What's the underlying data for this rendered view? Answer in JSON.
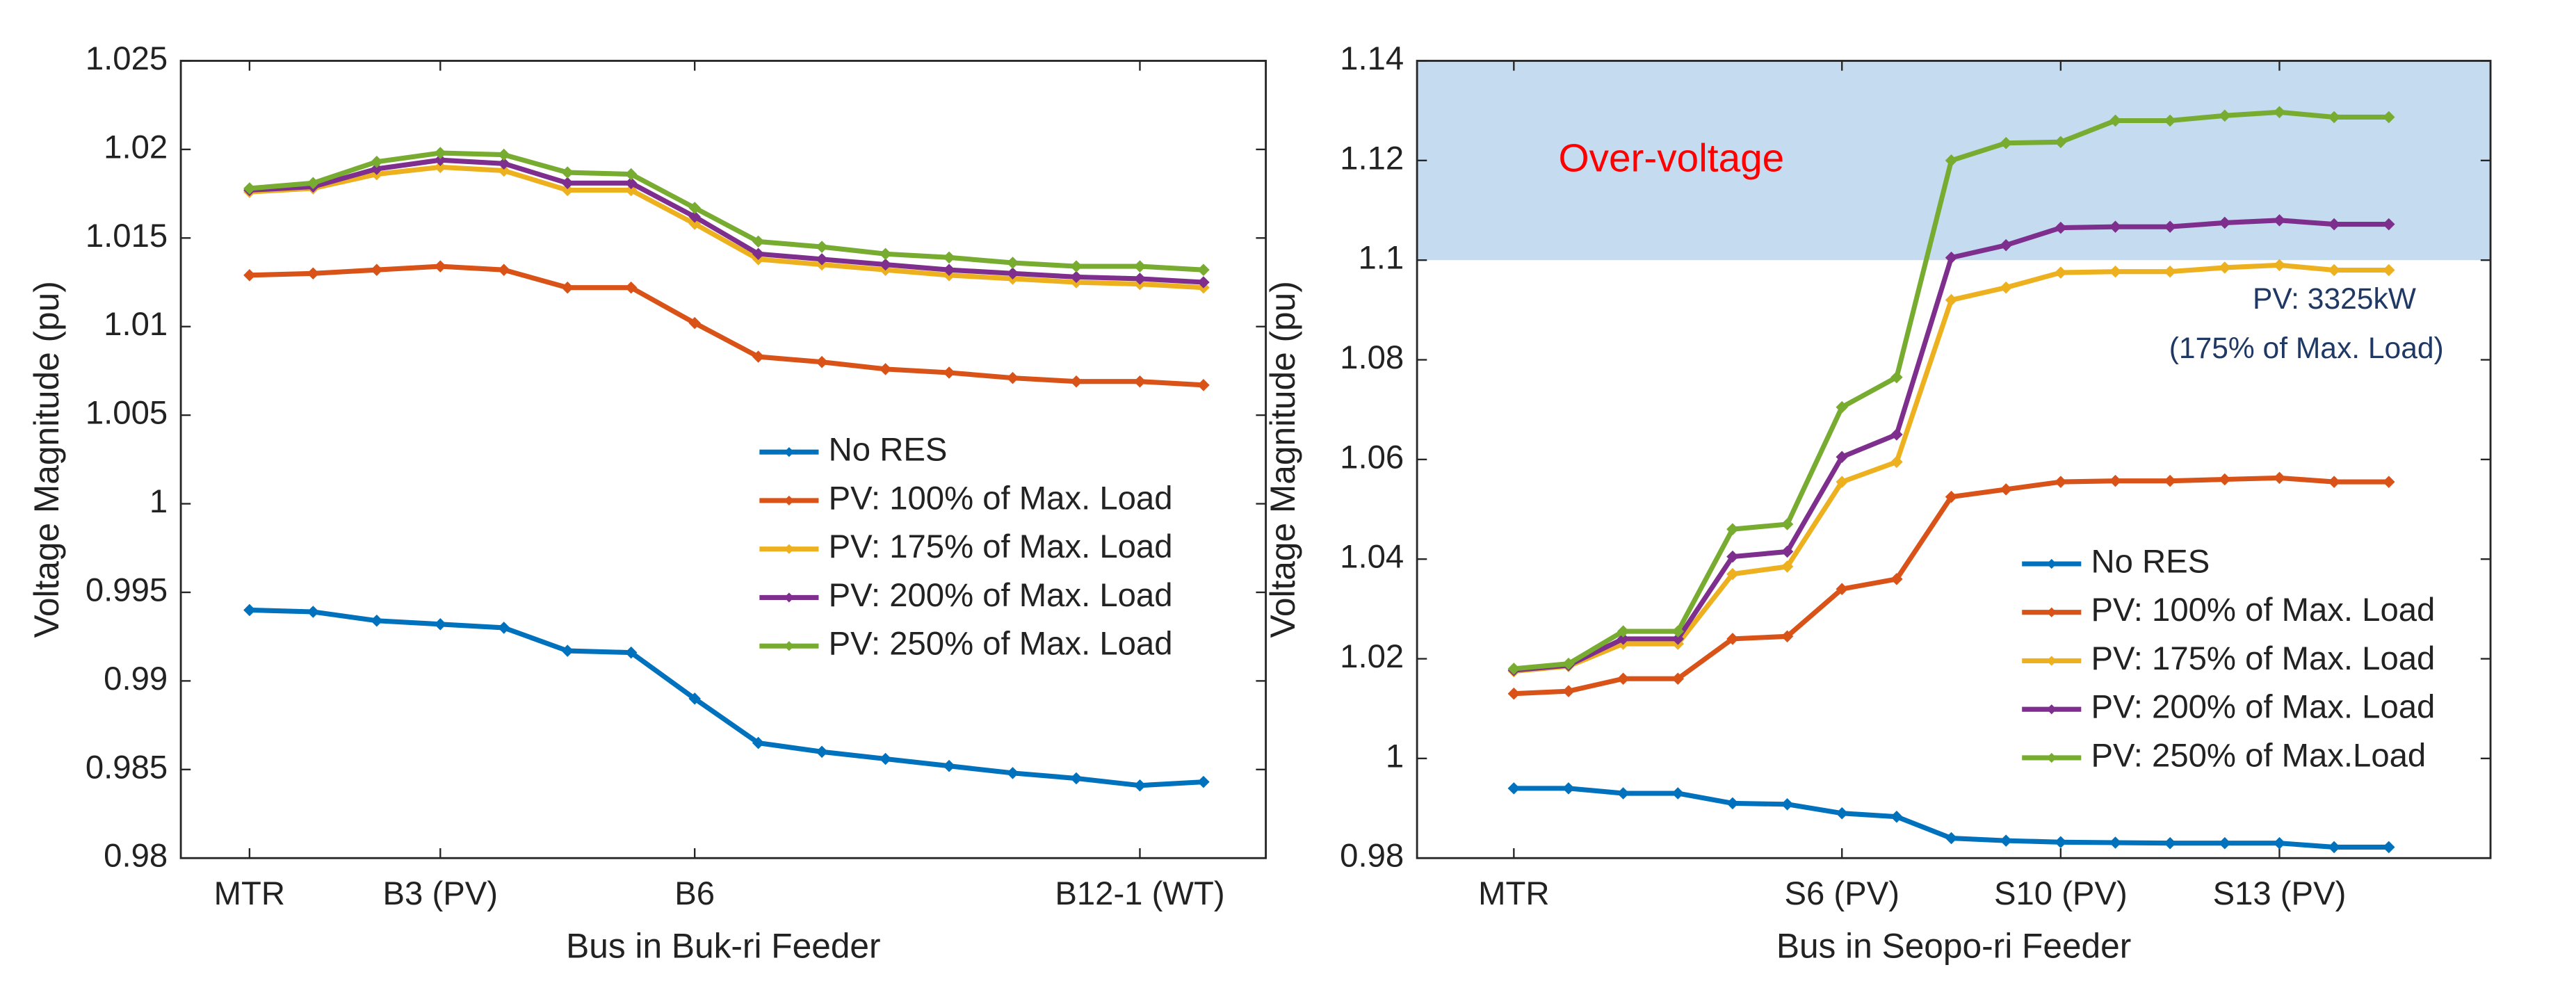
{
  "chart_data": [
    {
      "type": "line",
      "xlabel": "Bus in Buk-ri Feeder",
      "ylabel": "Voltage Magnitude (pu)",
      "categories": [
        "MTR",
        null,
        null,
        "B3 (PV)",
        null,
        null,
        null,
        "B6",
        null,
        null,
        null,
        null,
        null,
        null,
        "B12-1 (WT)",
        null
      ],
      "ylim": [
        0.98,
        1.025
      ],
      "yticks": [
        0.98,
        0.985,
        0.99,
        0.995,
        1,
        1.005,
        1.01,
        1.015,
        1.02,
        1.025
      ],
      "legend": "center right",
      "series": [
        {
          "name": "No RES",
          "color": "#0072bd",
          "values": [
            0.994,
            0.9939,
            0.9934,
            0.9932,
            0.993,
            0.9917,
            0.9916,
            0.989,
            0.9865,
            0.986,
            0.9856,
            0.9852,
            0.9848,
            0.9845,
            0.9841,
            0.9843
          ]
        },
        {
          "name": "PV: 100% of Max. Load",
          "color": "#d95319",
          "values": [
            1.0129,
            1.013,
            1.0132,
            1.0134,
            1.0132,
            1.0122,
            1.0122,
            1.0102,
            1.0083,
            1.008,
            1.0076,
            1.0074,
            1.0071,
            1.0069,
            1.0069,
            1.0067
          ]
        },
        {
          "name": "PV: 175% of Max. Load",
          "color": "#edb120",
          "values": [
            1.0176,
            1.0178,
            1.0186,
            1.019,
            1.0188,
            1.0177,
            1.0177,
            1.0158,
            1.0138,
            1.0135,
            1.0132,
            1.0129,
            1.0127,
            1.0125,
            1.0124,
            1.0122
          ]
        },
        {
          "name": "PV: 200% of Max. Load",
          "color": "#7e2f8e",
          "values": [
            1.0177,
            1.0179,
            1.0189,
            1.0194,
            1.0192,
            1.0181,
            1.0181,
            1.0162,
            1.0141,
            1.0138,
            1.0135,
            1.0132,
            1.013,
            1.0128,
            1.0127,
            1.0125
          ]
        },
        {
          "name": "PV: 250% of Max. Load",
          "color": "#77ac30",
          "values": [
            1.0178,
            1.0181,
            1.0193,
            1.0198,
            1.0197,
            1.0187,
            1.0186,
            1.0167,
            1.0148,
            1.0145,
            1.0141,
            1.0139,
            1.0136,
            1.0134,
            1.0134,
            1.0132
          ]
        }
      ]
    },
    {
      "type": "line",
      "xlabel": "Bus in Seopo-ri Feeder",
      "ylabel": "Voltage Magnitude (pu)",
      "categories": [
        "MTR",
        null,
        null,
        null,
        null,
        null,
        "S6 (PV)",
        null,
        null,
        null,
        "S10 (PV)",
        null,
        null,
        null,
        "S13 (PV)",
        null,
        null
      ],
      "ylim": [
        0.98,
        1.14
      ],
      "yticks": [
        0.98,
        1,
        1.02,
        1.04,
        1.06,
        1.08,
        1.1,
        1.12,
        1.14
      ],
      "legend": "lower right",
      "shaded_region": {
        "label": "Over-voltage",
        "range": [
          1.1,
          1.14
        ],
        "color": "#c5dbef"
      },
      "annotation": [
        "PV: 3325kW",
        "(175% of Max. Load)"
      ],
      "series": [
        {
          "name": "No RES",
          "color": "#0072bd",
          "values": [
            0.994,
            0.994,
            0.993,
            0.993,
            0.991,
            0.9908,
            0.989,
            0.9883,
            0.984,
            0.9835,
            0.9832,
            0.9831,
            0.983,
            0.983,
            0.983,
            0.9822,
            0.9822
          ]
        },
        {
          "name": "PV: 100% of Max. Load",
          "color": "#d95319",
          "values": [
            1.013,
            1.0135,
            1.016,
            1.016,
            1.024,
            1.0245,
            1.034,
            1.036,
            1.0525,
            1.054,
            1.0555,
            1.0557,
            1.0557,
            1.056,
            1.0563,
            1.0555,
            1.0555
          ]
        },
        {
          "name": "PV: 175% of Max. Load",
          "color": "#edb120",
          "values": [
            1.0175,
            1.0185,
            1.023,
            1.023,
            1.037,
            1.0385,
            1.0555,
            1.0595,
            1.092,
            1.0945,
            1.0975,
            1.0977,
            1.0977,
            1.0985,
            1.099,
            1.098,
            1.098
          ]
        },
        {
          "name": "PV: 200% of Max. Load",
          "color": "#7e2f8e",
          "values": [
            1.0177,
            1.0187,
            1.024,
            1.024,
            1.0405,
            1.0415,
            1.0605,
            1.065,
            1.1005,
            1.103,
            1.1065,
            1.1067,
            1.1067,
            1.1075,
            1.108,
            1.1072,
            1.1072
          ]
        },
        {
          "name": "PV: 250% of Max.Load",
          "color": "#77ac30",
          "values": [
            1.018,
            1.019,
            1.0255,
            1.0255,
            1.046,
            1.047,
            1.0705,
            1.0765,
            1.12,
            1.1235,
            1.1237,
            1.128,
            1.128,
            1.129,
            1.1297,
            1.1287,
            1.1287
          ]
        }
      ]
    }
  ]
}
